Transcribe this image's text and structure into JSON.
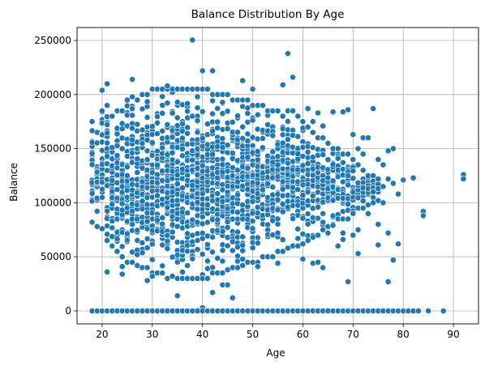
{
  "chart_data": {
    "type": "scatter",
    "title": "Balance Distribution By Age",
    "xlabel": "Age",
    "ylabel": "Balance",
    "xlim": [
      15,
      95
    ],
    "ylim": [
      -12000,
      262000
    ],
    "xticks": [
      20,
      30,
      40,
      50,
      60,
      70,
      80,
      90
    ],
    "yticks": [
      0,
      50000,
      100000,
      150000,
      200000,
      250000
    ],
    "grid": true,
    "marker_color": "#1f77b4",
    "marker_edge": "#ffffff",
    "zero_balance_ages": [
      18,
      19,
      20,
      21,
      22,
      23,
      24,
      25,
      26,
      27,
      28,
      29,
      30,
      31,
      32,
      33,
      34,
      35,
      36,
      37,
      38,
      39,
      40,
      41,
      42,
      43,
      44,
      45,
      46,
      47,
      48,
      49,
      50,
      51,
      52,
      53,
      54,
      55,
      56,
      57,
      58,
      59,
      60,
      61,
      62,
      63,
      64,
      65,
      66,
      67,
      68,
      69,
      70,
      71,
      72,
      73,
      74,
      75,
      76,
      77,
      78,
      79,
      80,
      81,
      82,
      83,
      85,
      88
    ],
    "dense_band": [
      {
        "age": 18,
        "min": 82000,
        "max": 175000
      },
      {
        "age": 19,
        "min": 78000,
        "max": 165000
      },
      {
        "age": 20,
        "min": 76000,
        "max": 185000
      },
      {
        "age": 21,
        "min": 65000,
        "max": 190000
      },
      {
        "age": 22,
        "min": 60000,
        "max": 180000
      },
      {
        "age": 23,
        "min": 55000,
        "max": 185000
      },
      {
        "age": 24,
        "min": 50000,
        "max": 185000
      },
      {
        "age": 25,
        "min": 45000,
        "max": 195000
      },
      {
        "age": 26,
        "min": 45000,
        "max": 198000
      },
      {
        "age": 27,
        "min": 42000,
        "max": 195000
      },
      {
        "age": 28,
        "min": 40000,
        "max": 200000
      },
      {
        "age": 29,
        "min": 40000,
        "max": 200000
      },
      {
        "age": 30,
        "min": 35000,
        "max": 205000
      },
      {
        "age": 31,
        "min": 35000,
        "max": 205000
      },
      {
        "age": 32,
        "min": 35000,
        "max": 205000
      },
      {
        "age": 33,
        "min": 30000,
        "max": 205000
      },
      {
        "age": 34,
        "min": 32000,
        "max": 205000
      },
      {
        "age": 35,
        "min": 30000,
        "max": 205000
      },
      {
        "age": 36,
        "min": 30000,
        "max": 205000
      },
      {
        "age": 37,
        "min": 30000,
        "max": 205000
      },
      {
        "age": 38,
        "min": 30000,
        "max": 205000
      },
      {
        "age": 39,
        "min": 30000,
        "max": 205000
      },
      {
        "age": 40,
        "min": 30000,
        "max": 205000
      },
      {
        "age": 41,
        "min": 30000,
        "max": 205000
      },
      {
        "age": 42,
        "min": 35000,
        "max": 200000
      },
      {
        "age": 43,
        "min": 35000,
        "max": 200000
      },
      {
        "age": 44,
        "min": 35000,
        "max": 200000
      },
      {
        "age": 45,
        "min": 38000,
        "max": 200000
      },
      {
        "age": 46,
        "min": 40000,
        "max": 195000
      },
      {
        "age": 47,
        "min": 40000,
        "max": 195000
      },
      {
        "age": 48,
        "min": 42000,
        "max": 195000
      },
      {
        "age": 49,
        "min": 45000,
        "max": 195000
      },
      {
        "age": 50,
        "min": 45000,
        "max": 190000
      },
      {
        "age": 51,
        "min": 45000,
        "max": 190000
      },
      {
        "age": 52,
        "min": 50000,
        "max": 190000
      },
      {
        "age": 53,
        "min": 50000,
        "max": 185000
      },
      {
        "age": 54,
        "min": 50000,
        "max": 185000
      },
      {
        "age": 55,
        "min": 55000,
        "max": 185000
      },
      {
        "age": 56,
        "min": 55000,
        "max": 180000
      },
      {
        "age": 57,
        "min": 58000,
        "max": 185000
      },
      {
        "age": 58,
        "min": 60000,
        "max": 185000
      },
      {
        "age": 59,
        "min": 60000,
        "max": 180000
      },
      {
        "age": 60,
        "min": 62000,
        "max": 175000
      },
      {
        "age": 61,
        "min": 65000,
        "max": 170000
      },
      {
        "age": 62,
        "min": 68000,
        "max": 165000
      },
      {
        "age": 63,
        "min": 70000,
        "max": 160000
      },
      {
        "age": 64,
        "min": 75000,
        "max": 160000
      },
      {
        "age": 65,
        "min": 78000,
        "max": 155000
      },
      {
        "age": 66,
        "min": 80000,
        "max": 150000
      },
      {
        "age": 67,
        "min": 85000,
        "max": 150000
      },
      {
        "age": 68,
        "min": 85000,
        "max": 145000
      },
      {
        "age": 69,
        "min": 85000,
        "max": 145000
      },
      {
        "age": 70,
        "min": 90000,
        "max": 140000
      },
      {
        "age": 71,
        "min": 95000,
        "max": 135000
      },
      {
        "age": 72,
        "min": 95000,
        "max": 130000
      },
      {
        "age": 73,
        "min": 98000,
        "max": 125000
      },
      {
        "age": 74,
        "min": 100000,
        "max": 125000
      },
      {
        "age": 75,
        "min": 102000,
        "max": 122000
      }
    ],
    "outliers": [
      {
        "x": 38,
        "y": 250500
      },
      {
        "x": 57,
        "y": 238000
      },
      {
        "x": 58,
        "y": 216000
      },
      {
        "x": 40,
        "y": 222000
      },
      {
        "x": 42,
        "y": 222000
      },
      {
        "x": 48,
        "y": 213000
      },
      {
        "x": 26,
        "y": 214000
      },
      {
        "x": 21,
        "y": 210000
      },
      {
        "x": 20,
        "y": 204000
      },
      {
        "x": 56,
        "y": 209000
      },
      {
        "x": 50,
        "y": 205000
      },
      {
        "x": 33,
        "y": 208000
      },
      {
        "x": 21,
        "y": 36000
      },
      {
        "x": 24,
        "y": 34000
      },
      {
        "x": 24,
        "y": 41000
      },
      {
        "x": 29,
        "y": 28000
      },
      {
        "x": 30,
        "y": 32000
      },
      {
        "x": 35,
        "y": 14000
      },
      {
        "x": 42,
        "y": 17000
      },
      {
        "x": 44,
        "y": 24000
      },
      {
        "x": 45,
        "y": 24000
      },
      {
        "x": 46,
        "y": 12000
      },
      {
        "x": 40,
        "y": 3000
      },
      {
        "x": 51,
        "y": 41000
      },
      {
        "x": 55,
        "y": 44000
      },
      {
        "x": 60,
        "y": 48000
      },
      {
        "x": 62,
        "y": 44000
      },
      {
        "x": 63,
        "y": 45000
      },
      {
        "x": 64,
        "y": 40000
      },
      {
        "x": 69,
        "y": 27000
      },
      {
        "x": 71,
        "y": 53000
      },
      {
        "x": 75,
        "y": 61000
      },
      {
        "x": 77,
        "y": 27000
      },
      {
        "x": 78,
        "y": 47000
      },
      {
        "x": 79,
        "y": 62000
      },
      {
        "x": 77,
        "y": 72000
      },
      {
        "x": 80,
        "y": 121000
      },
      {
        "x": 82,
        "y": 123000
      },
      {
        "x": 84,
        "y": 92000
      },
      {
        "x": 84,
        "y": 88000
      },
      {
        "x": 92,
        "y": 126000
      },
      {
        "x": 92,
        "y": 122000
      },
      {
        "x": 79,
        "y": 108000
      },
      {
        "x": 78,
        "y": 150000
      },
      {
        "x": 77,
        "y": 148000
      },
      {
        "x": 74,
        "y": 187000
      },
      {
        "x": 69,
        "y": 186000
      },
      {
        "x": 68,
        "y": 184000
      },
      {
        "x": 70,
        "y": 163000
      },
      {
        "x": 72,
        "y": 160000
      },
      {
        "x": 73,
        "y": 160000
      },
      {
        "x": 76,
        "y": 135000
      },
      {
        "x": 76,
        "y": 100000
      },
      {
        "x": 75,
        "y": 80000
      },
      {
        "x": 73,
        "y": 90000
      },
      {
        "x": 74,
        "y": 110000
      },
      {
        "x": 71,
        "y": 75000
      },
      {
        "x": 70,
        "y": 70000
      },
      {
        "x": 68,
        "y": 72000
      },
      {
        "x": 66,
        "y": 79000
      },
      {
        "x": 65,
        "y": 72000
      },
      {
        "x": 67,
        "y": 60000
      },
      {
        "x": 68,
        "y": 66000
      },
      {
        "x": 72,
        "y": 145000
      },
      {
        "x": 71,
        "y": 150000
      },
      {
        "x": 75,
        "y": 140000
      },
      {
        "x": 77,
        "y": 122000
      },
      {
        "x": 78,
        "y": 118000
      },
      {
        "x": 76,
        "y": 115000
      },
      {
        "x": 63,
        "y": 183000
      },
      {
        "x": 61,
        "y": 187000
      },
      {
        "x": 66,
        "y": 184000
      },
      {
        "x": 64,
        "y": 171000
      },
      {
        "x": 62,
        "y": 175000
      }
    ]
  }
}
